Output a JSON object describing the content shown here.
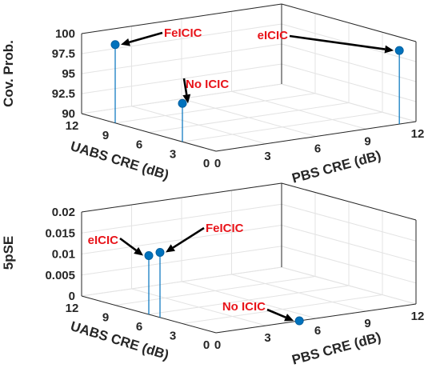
{
  "chart_data": [
    {
      "type": "stem3d",
      "xlabel": "PBS CRE (dB)",
      "ylabel": "UABS CRE (dB)",
      "zlabel": "Cov. Prob.",
      "xlim": [
        0,
        12
      ],
      "ylim": [
        0,
        12
      ],
      "zlim": [
        90,
        100
      ],
      "xticks": [
        "0",
        "3",
        "6",
        "9",
        "12"
      ],
      "yticks": [
        "0",
        "3",
        "6",
        "9",
        "12"
      ],
      "zticks": [
        "90",
        "92.5",
        "95",
        "97.5",
        "100"
      ],
      "grid": true,
      "points": [
        {
          "label": "FeICIC",
          "x": 0,
          "y": 9,
          "z": 99.8
        },
        {
          "label": "No ICIC",
          "x": 0,
          "y": 3,
          "z": 94.8
        },
        {
          "label": "eICIC",
          "x": 11,
          "y": 0,
          "z": 99.2
        }
      ]
    },
    {
      "type": "stem3d",
      "xlabel": "PBS CRE (dB)",
      "ylabel": "UABS CRE (dB)",
      "zlabel": "5pSE",
      "xlim": [
        0,
        12
      ],
      "ylim": [
        0,
        12
      ],
      "zlim": [
        0,
        0.02
      ],
      "xticks": [
        "0",
        "3",
        "6",
        "9",
        "12"
      ],
      "yticks": [
        "0",
        "3",
        "6",
        "9",
        "12"
      ],
      "zticks": [
        "0",
        "0.005",
        "0.01",
        "0.015",
        "0.02"
      ],
      "grid": true,
      "points": [
        {
          "label": "eICIC",
          "x": 0,
          "y": 6,
          "z": 0.014
        },
        {
          "label": "FeICIC",
          "x": 0,
          "y": 5,
          "z": 0.0155
        },
        {
          "label": "No ICIC",
          "x": 5,
          "y": 0,
          "z": 0
        }
      ]
    }
  ]
}
